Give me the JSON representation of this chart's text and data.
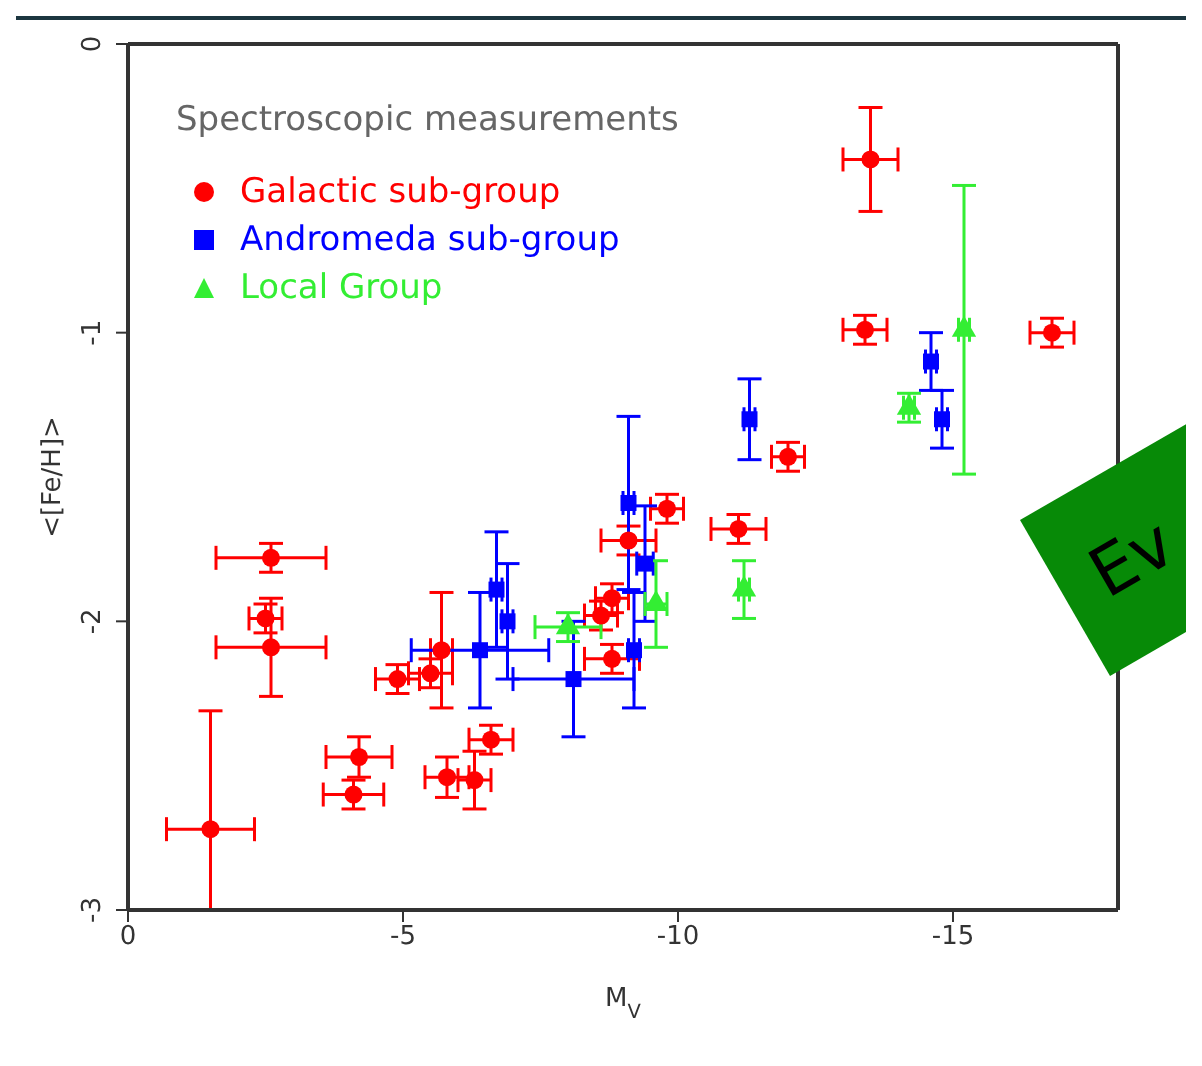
{
  "chart_data": {
    "type": "scatter",
    "xlabel": "M$_{V}$",
    "ylabel": "<[Fe/H]>",
    "legend_title": "Spectroscopic measurements",
    "legend": "top left",
    "xlim": [
      0,
      -18
    ],
    "xticks": [
      0,
      -5,
      -10,
      -15
    ],
    "ylim": [
      -3,
      0
    ],
    "yticks": [
      0,
      -1,
      -2,
      -3
    ],
    "grid": false,
    "annotations": [
      "Ev"
    ],
    "series": [
      {
        "name": "Galactic sub-group",
        "color": "#ff0000",
        "marker": "circle",
        "x": [
          -1.5,
          -2.6,
          -2.5,
          -2.6,
          -4.1,
          -4.2,
          -4.9,
          -5.5,
          -5.7,
          -5.8,
          -6.3,
          -6.6,
          -8.6,
          -8.8,
          -8.8,
          -9.1,
          -9.8,
          -11.1,
          -12.0,
          -13.4,
          -13.5,
          -16.8
        ],
        "values": [
          -2.72,
          -1.78,
          -1.99,
          -2.09,
          -2.6,
          -2.47,
          -2.2,
          -2.18,
          -2.1,
          -2.54,
          -2.55,
          -2.41,
          -1.98,
          -1.92,
          -2.13,
          -1.72,
          -1.61,
          -1.68,
          -1.43,
          -0.99,
          -0.4,
          -1.0
        ],
        "errors": [
          [
            -3.0,
            -2.31
          ],
          0.05,
          0.05,
          0.17,
          0.05,
          0.07,
          0.05,
          0.05,
          0.2,
          0.07,
          0.1,
          0.05,
          0.05,
          0.05,
          0.05,
          0.05,
          0.05,
          0.05,
          0.05,
          0.05,
          0.18,
          0.05
        ],
        "xerrors": [
          0.8,
          1.0,
          0.3,
          1.0,
          0.55,
          0.6,
          0.4,
          0.4,
          0.2,
          0.4,
          0.3,
          0.4,
          0.3,
          0.3,
          0.5,
          0.5,
          0.3,
          0.5,
          0.3,
          0.4,
          0.5,
          0.4
        ]
      },
      {
        "name": "Andromeda sub-group",
        "color": "#0000ff",
        "marker": "square",
        "x": [
          -6.4,
          -6.7,
          -6.9,
          -8.1,
          -9.1,
          -9.2,
          -9.4,
          -11.3,
          -14.6,
          -14.8
        ],
        "values": [
          -2.1,
          -1.89,
          -2.0,
          -2.2,
          -1.59,
          -2.1,
          -1.8,
          -1.3,
          -1.1,
          -1.3
        ],
        "errors": [
          0.2,
          0.2,
          0.2,
          0.2,
          0.3,
          0.2,
          0.2,
          0.14,
          0.1,
          0.1
        ],
        "xerrors": [
          1.25,
          0.1,
          0.1,
          1.1,
          0.1,
          0.1,
          0.15,
          0.1,
          0.1,
          0.1
        ]
      },
      {
        "name": "Local Group",
        "color": "#33ee33",
        "marker": "triangle",
        "x": [
          -8.0,
          -9.6,
          -11.2,
          -14.2,
          -15.2
        ],
        "values": [
          -2.02,
          -1.94,
          -1.89,
          -1.26,
          -0.99
        ],
        "errors": [
          0.05,
          0.15,
          0.1,
          0.05,
          0.5
        ],
        "xerrors": [
          0.6,
          0.2,
          0.1,
          0.1,
          0.1
        ]
      }
    ]
  }
}
